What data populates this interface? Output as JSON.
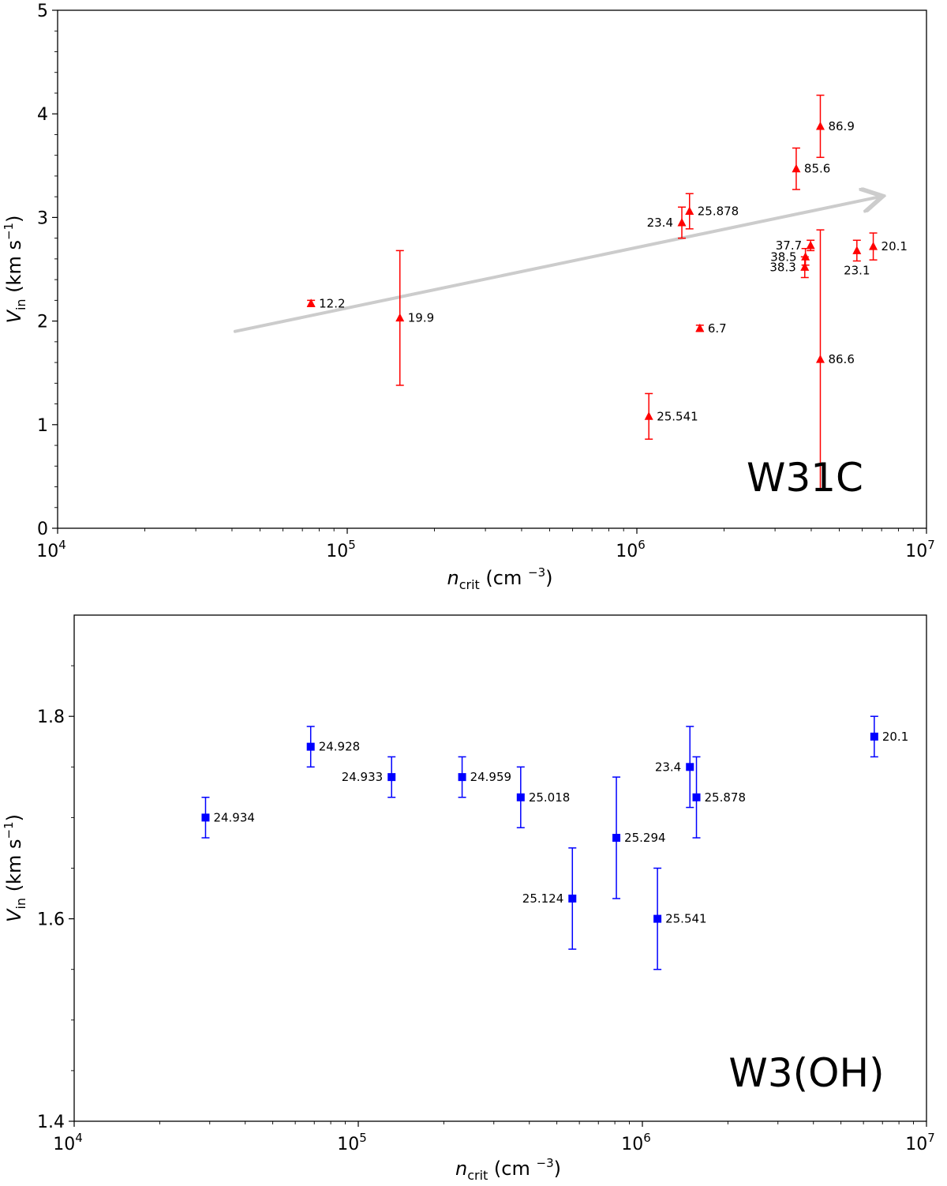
{
  "chart_data": [
    {
      "type": "scatter",
      "panel_label": "W31C",
      "xscale": "log",
      "xlim": [
        10000,
        10000000
      ],
      "ylim": [
        0,
        5
      ],
      "xlabel": {
        "var": "n",
        "sub": "crit",
        "unit": " (cm ",
        "exp": "−3",
        "close": ")"
      },
      "ylabel": {
        "var": "V",
        "sub": "in",
        "unit": " (km s",
        "exp": "−1",
        "close": ")"
      },
      "xticks": [
        {
          "value": 10000,
          "base": "10",
          "exp": "4"
        },
        {
          "value": 100000,
          "base": "10",
          "exp": "5"
        },
        {
          "value": 1000000,
          "base": "10",
          "exp": "6"
        },
        {
          "value": 10000000,
          "base": "10",
          "exp": "7"
        }
      ],
      "yticks": [
        {
          "value": 0,
          "label": "0"
        },
        {
          "value": 1,
          "label": "1"
        },
        {
          "value": 2,
          "label": "2"
        },
        {
          "value": 3,
          "label": "3"
        },
        {
          "value": 4,
          "label": "4"
        },
        {
          "value": 5,
          "label": "5"
        }
      ],
      "marker": "triangle",
      "color": "#ff0000",
      "points": [
        {
          "x": 75000,
          "y": 2.17,
          "err": 0.03,
          "label": "12.2",
          "side": "right"
        },
        {
          "x": 152000,
          "y": 2.03,
          "err": 0.65,
          "label": "19.9",
          "side": "right"
        },
        {
          "x": 1100000,
          "y": 1.08,
          "err": 0.22,
          "label": "25.541",
          "side": "right"
        },
        {
          "x": 1430000,
          "y": 2.95,
          "err": 0.15,
          "label": "23.4",
          "side": "left"
        },
        {
          "x": 1520000,
          "y": 3.06,
          "err": 0.17,
          "label": "25.878",
          "side": "right"
        },
        {
          "x": 1650000,
          "y": 1.93,
          "err": 0.03,
          "label": "6.7",
          "side": "right"
        },
        {
          "x": 3550000,
          "y": 3.47,
          "err": 0.2,
          "label": "85.6",
          "side": "right"
        },
        {
          "x": 3800000,
          "y": 2.52,
          "err": 0.1,
          "label": "38.3",
          "side": "left"
        },
        {
          "x": 3820000,
          "y": 2.62,
          "err": 0.08,
          "label": "38.5",
          "side": "left"
        },
        {
          "x": 3980000,
          "y": 2.73,
          "err": 0.05,
          "label": "37.7",
          "side": "left"
        },
        {
          "x": 4300000,
          "y": 3.88,
          "err": 0.3,
          "label": "86.9",
          "side": "right"
        },
        {
          "x": 4300000,
          "y": 1.63,
          "err": 1.25,
          "label": "86.6",
          "side": "right"
        },
        {
          "x": 5750000,
          "y": 2.68,
          "err": 0.1,
          "label": "23.1",
          "side": "below"
        },
        {
          "x": 6550000,
          "y": 2.72,
          "err": 0.13,
          "label": "20.1",
          "side": "right"
        }
      ],
      "trend_arrow": {
        "x0": 41000,
        "y0": 1.9,
        "x1": 6900000,
        "y1": 3.2,
        "color": "#cccccc"
      }
    },
    {
      "type": "scatter",
      "panel_label": "W3(OH)",
      "xscale": "log",
      "xlim": [
        10000,
        10000000
      ],
      "ylim": [
        1.4,
        1.9
      ],
      "xlabel": {
        "var": "n",
        "sub": "crit",
        "unit": " (cm ",
        "exp": "−3",
        "close": ")"
      },
      "ylabel": {
        "var": "V",
        "sub": "in",
        "unit": " (km s",
        "exp": "−1",
        "close": ")"
      },
      "xticks": [
        {
          "value": 10000,
          "base": "10",
          "exp": "4"
        },
        {
          "value": 100000,
          "base": "10",
          "exp": "5"
        },
        {
          "value": 1000000,
          "base": "10",
          "exp": "6"
        },
        {
          "value": 10000000,
          "base": "10",
          "exp": "7"
        }
      ],
      "yticks": [
        {
          "value": 1.4,
          "label": "1.4"
        },
        {
          "value": 1.6,
          "label": "1.6"
        },
        {
          "value": 1.8,
          "label": "1.8"
        }
      ],
      "marker": "square",
      "color": "#0000ff",
      "points": [
        {
          "x": 29000,
          "y": 1.7,
          "err": 0.02,
          "label": "24.934",
          "side": "right"
        },
        {
          "x": 68000,
          "y": 1.77,
          "err": 0.02,
          "label": "24.928",
          "side": "right"
        },
        {
          "x": 131000,
          "y": 1.74,
          "err": 0.02,
          "label": "24.933",
          "side": "left"
        },
        {
          "x": 232000,
          "y": 1.74,
          "err": 0.02,
          "label": "24.959",
          "side": "right"
        },
        {
          "x": 373000,
          "y": 1.72,
          "err": 0.03,
          "label": "25.018",
          "side": "right"
        },
        {
          "x": 567000,
          "y": 1.62,
          "err": 0.05,
          "label": "25.124",
          "side": "left"
        },
        {
          "x": 810000,
          "y": 1.68,
          "err": 0.06,
          "label": "25.294",
          "side": "right"
        },
        {
          "x": 1130000,
          "y": 1.6,
          "err": 0.05,
          "label": "25.541",
          "side": "right"
        },
        {
          "x": 1470000,
          "y": 1.75,
          "err": 0.04,
          "label": "23.4",
          "side": "left"
        },
        {
          "x": 1550000,
          "y": 1.72,
          "err": 0.04,
          "label": "25.878",
          "side": "right"
        },
        {
          "x": 6550000,
          "y": 1.78,
          "err": 0.02,
          "label": "20.1",
          "side": "right"
        }
      ]
    }
  ]
}
